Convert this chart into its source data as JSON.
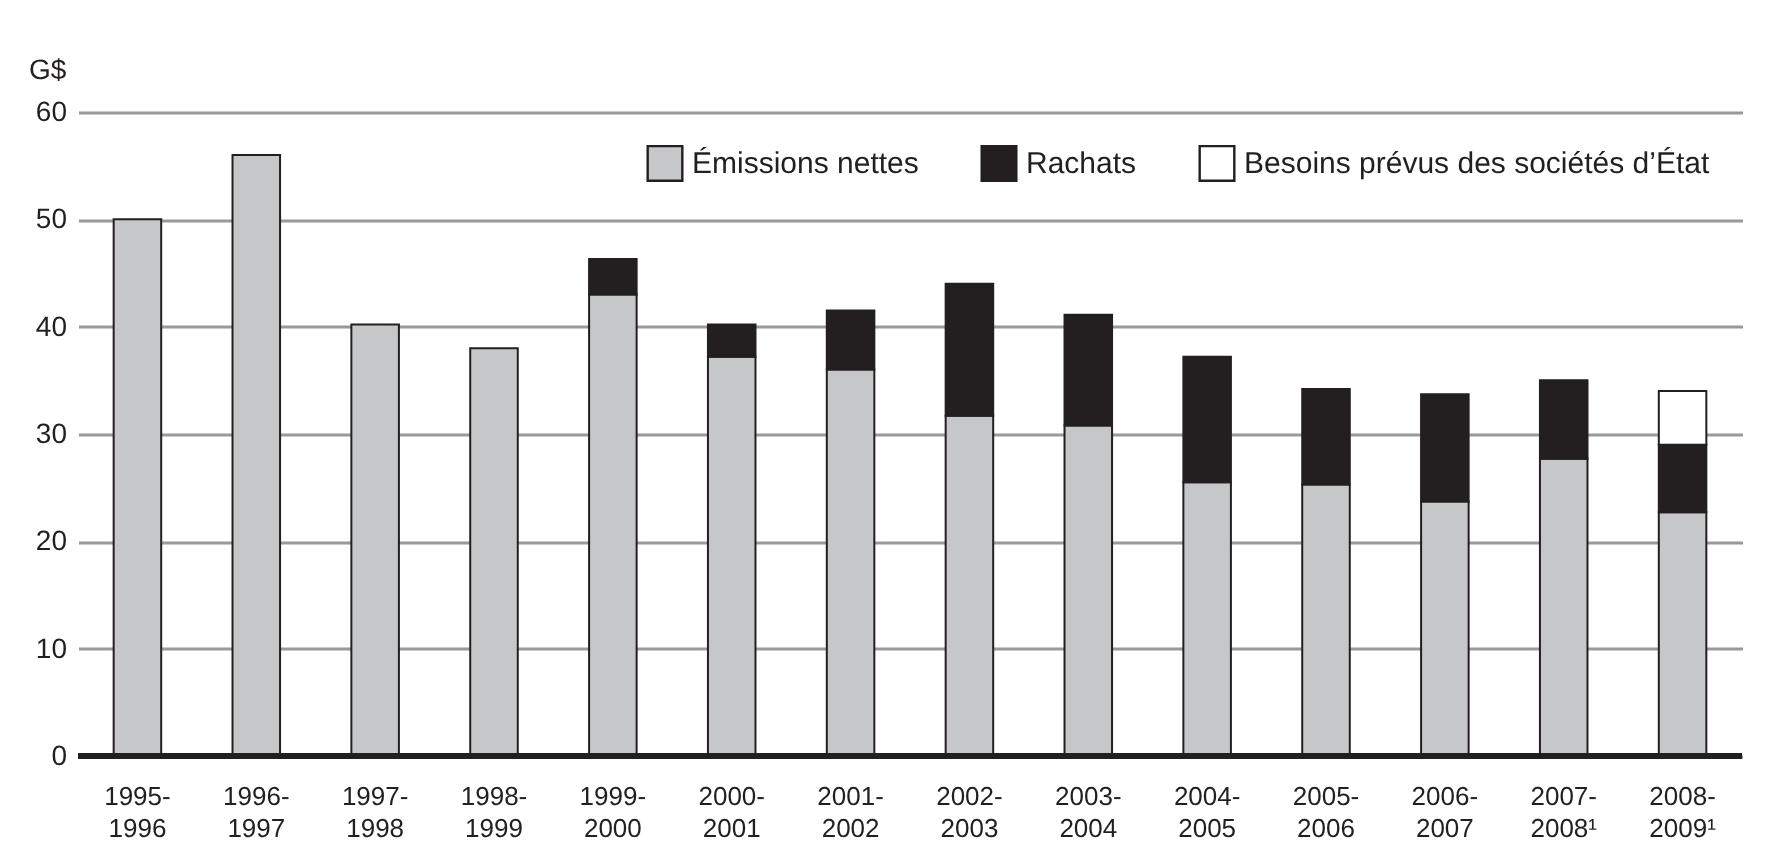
{
  "chart_data": {
    "type": "bar",
    "stacked": true,
    "ylabel": "G$",
    "categories": [
      "1995-1996",
      "1996-1997",
      "1997-1998",
      "1998-1999",
      "1999-2000",
      "2000-2001",
      "2001-2002",
      "2002-2003",
      "2003-2004",
      "2004-2005",
      "2005-2006",
      "2006-2007",
      "2007-2008¹",
      "2008-2009¹"
    ],
    "series": [
      {
        "name": "Émissions nettes",
        "color": "#c6c7c9",
        "values": [
          50,
          56,
          40.2,
          38,
          43,
          37.2,
          36,
          31.7,
          30.8,
          25.5,
          25.3,
          23.7,
          27.7,
          22.7
        ]
      },
      {
        "name": "Rachats",
        "color": "#231f20",
        "values": [
          null,
          null,
          null,
          null,
          3.3,
          3,
          5.5,
          12.3,
          10.3,
          11.7,
          8.9,
          10,
          7.3,
          6.3
        ]
      },
      {
        "name": "Besoins prévus des sociétés d’État",
        "color": "#ffffff",
        "values": [
          null,
          null,
          null,
          null,
          null,
          null,
          null,
          null,
          null,
          null,
          null,
          null,
          null,
          5
        ]
      }
    ],
    "ylim": [
      0,
      60
    ],
    "yticks": [
      0,
      10,
      20,
      30,
      40,
      50,
      60
    ],
    "grid": "y",
    "legend": "top right"
  }
}
